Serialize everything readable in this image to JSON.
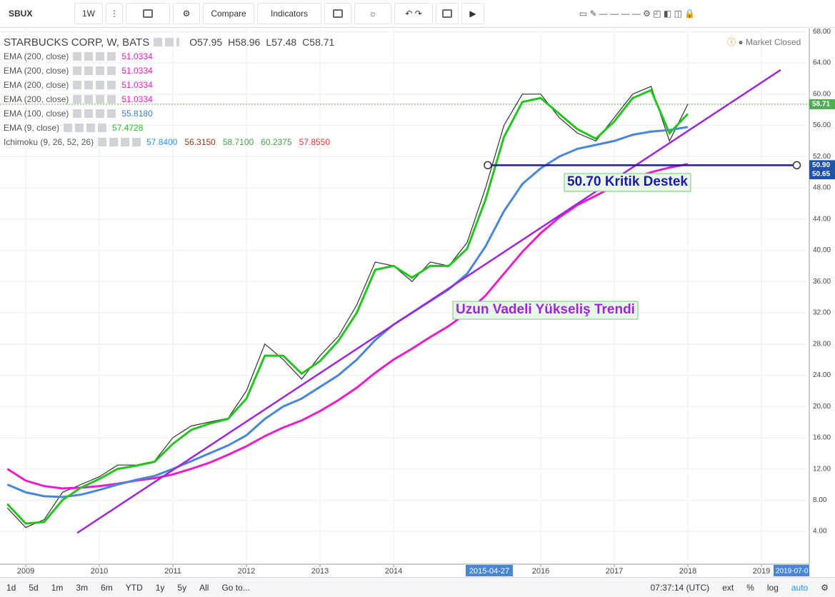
{
  "toolbar": {
    "symbol": "SBUX",
    "interval": "1W",
    "compare": "Compare",
    "indicators": "Indicators"
  },
  "legend": {
    "title": "STARBUCKS CORP, W, BATS",
    "ohlc": [
      {
        "label": "O",
        "value": 57.95
      },
      {
        "label": "H",
        "value": 58.96
      },
      {
        "label": "L",
        "value": 57.48
      },
      {
        "label": "C",
        "value": 58.71
      }
    ],
    "indicators": [
      {
        "name": "EMA (200, close)",
        "values": [
          51.0334
        ],
        "colors": [
          "#e91ec9"
        ]
      },
      {
        "name": "EMA (200, close)",
        "values": [
          51.0334
        ],
        "colors": [
          "#e91ec9"
        ]
      },
      {
        "name": "EMA (200, close)",
        "values": [
          51.0334
        ],
        "colors": [
          "#e91ec9"
        ]
      },
      {
        "name": "EMA (200, close)",
        "values": [
          51.0334
        ],
        "colors": [
          "#e91ec9"
        ]
      },
      {
        "name": "EMA (100, close)",
        "values": [
          55.818
        ],
        "value_labels": [
          "55.8180"
        ],
        "colors": [
          "#3d7bd9"
        ]
      },
      {
        "name": "EMA (9, close)",
        "values": [
          57.4728
        ],
        "colors": [
          "#23c41e"
        ]
      },
      {
        "name": "Ichimoku (9, 26, 52, 26)",
        "values": [
          57.84,
          56.315,
          58.71,
          60.2375,
          57.855
        ],
        "value_labels": [
          "57.8400",
          "56.3150",
          "58.7100",
          "60.2375",
          "57.8550"
        ],
        "colors": [
          "#2196f3",
          "#8d3a1a",
          "#43a047",
          "#43a047",
          "#e53935"
        ]
      }
    ],
    "status": "Market Closed"
  },
  "chart_data": {
    "type": "line",
    "x": [
      2008.75,
      2009,
      2009.25,
      2009.5,
      2009.75,
      2010,
      2010.25,
      2010.5,
      2010.75,
      2011,
      2011.25,
      2011.5,
      2011.75,
      2012,
      2012.25,
      2012.5,
      2012.75,
      2013,
      2013.25,
      2013.5,
      2013.75,
      2014,
      2014.25,
      2014.5,
      2014.75,
      2015,
      2015.25,
      2015.5,
      2015.75,
      2016,
      2016.25,
      2016.5,
      2016.75,
      2017,
      2017.25,
      2017.5,
      2017.75,
      2018
    ],
    "series": [
      {
        "color": "#333333",
        "values": [
          7,
          4.5,
          5.5,
          9,
          10,
          11,
          12.5,
          12.5,
          13,
          16,
          17.5,
          18,
          18.5,
          22,
          28,
          26,
          23.5,
          26.5,
          29,
          33,
          38.5,
          38,
          36,
          38.5,
          38,
          41,
          48,
          56,
          60,
          60,
          57,
          55,
          54,
          57,
          60,
          61,
          54,
          58.71
        ]
      },
      {
        "name": "EMA (200, close)",
        "color": "#e91ec9",
        "values": [
          12,
          10.5,
          9.8,
          9.5,
          9.6,
          9.8,
          10.1,
          10.5,
          10.8,
          11.3,
          12,
          12.8,
          13.8,
          14.9,
          16.2,
          17.3,
          18.2,
          19.4,
          20.8,
          22.4,
          24.3,
          26,
          27.4,
          28.9,
          30.3,
          32,
          34.2,
          37,
          39.8,
          42.2,
          44.2,
          45.8,
          47,
          48.2,
          49.2,
          50,
          50.6,
          51.03
        ]
      },
      {
        "name": "EMA (100, close)",
        "color": "#4a86d8",
        "values": [
          10,
          9,
          8.5,
          8.4,
          8.7,
          9.3,
          10,
          10.6,
          11.1,
          12,
          13,
          14,
          15,
          16.3,
          18.4,
          20,
          21,
          22.5,
          24,
          26,
          28.5,
          30.5,
          32,
          33.5,
          35,
          37,
          40.5,
          45,
          48.5,
          50.5,
          52,
          53,
          53.5,
          54,
          54.8,
          55.2,
          55.4,
          55.8
        ]
      },
      {
        "name": "EMA (9, close)",
        "color": "#23c41e",
        "values": [
          7.5,
          5,
          5.2,
          8,
          9.6,
          10.7,
          12,
          12.4,
          12.9,
          15.2,
          17,
          17.8,
          18.4,
          21,
          26.5,
          26.5,
          24.2,
          25.8,
          28.4,
          32,
          37.5,
          38,
          36.5,
          38,
          38,
          40.2,
          46.5,
          54.5,
          59,
          59.5,
          57.5,
          55.5,
          54.3,
          56.5,
          59.5,
          60.5,
          55,
          57.47
        ]
      }
    ],
    "xlim": [
      2008.65,
      2019.65
    ],
    "ylim": [
      -0.2,
      68.4
    ],
    "xticks": [
      {
        "value": 2009,
        "label": "2009"
      },
      {
        "value": 2010,
        "label": "2010"
      },
      {
        "value": 2011,
        "label": "2011"
      },
      {
        "value": 2012,
        "label": "2012"
      },
      {
        "value": 2013,
        "label": "2013"
      },
      {
        "value": 2014,
        "label": "2014"
      },
      {
        "value": 2016,
        "label": "2016"
      },
      {
        "value": 2017,
        "label": "2017"
      },
      {
        "value": 2018,
        "label": "2018"
      },
      {
        "value": 2019,
        "label": "2019"
      }
    ],
    "yticks": [
      {
        "value": 4,
        "label": "4.00"
      },
      {
        "value": 8,
        "label": "8.00"
      },
      {
        "value": 12,
        "label": "12.00"
      },
      {
        "value": 16,
        "label": "16.00"
      },
      {
        "value": 20,
        "label": "20.00"
      },
      {
        "value": 24,
        "label": "24.00"
      },
      {
        "value": 28,
        "label": "28.00"
      },
      {
        "value": 32,
        "label": "32.00"
      },
      {
        "value": 36,
        "label": "36.00"
      },
      {
        "value": 40,
        "label": "40.00"
      },
      {
        "value": 44,
        "label": "44.00"
      },
      {
        "value": 48,
        "label": "48.00"
      },
      {
        "value": 52,
        "label": "52.00"
      },
      {
        "value": 56,
        "label": "56.00"
      },
      {
        "value": 60,
        "label": "60.00"
      },
      {
        "value": 64,
        "label": "64.00"
      },
      {
        "value": 68,
        "label": "68.00"
      }
    ],
    "grid": true,
    "price_labels": [
      {
        "value": 58.71,
        "label": "58.71",
        "color": "#4caf50"
      },
      {
        "value": 50.9,
        "label": "50.90",
        "color": "#1e53a8"
      },
      {
        "value": 50.65,
        "label": "50.65",
        "color": "#1e53a8"
      }
    ],
    "trend_lines": [
      {
        "x": [
          2009.7,
          2019.26
        ],
        "y": [
          3.8,
          63.1
        ],
        "color": "#9c27d9"
      },
      {
        "x": [
          2015.28,
          2019.48
        ],
        "y": [
          50.9,
          50.9
        ],
        "color": "#1a1aa6"
      }
    ],
    "annotations": [
      {
        "text": "50.70 Kritik Destek",
        "color": "#1a1aa6"
      },
      {
        "text": "Uzun Vadeli Yükseliş Trendi",
        "color": "#9c27d9"
      }
    ],
    "crosshair_label": "2015-04-27",
    "range_end_label": "2019-07-0"
  },
  "bottom_bar": {
    "ranges": [
      "1d",
      "5d",
      "1m",
      "3m",
      "6m",
      "YTD",
      "1y",
      "5y",
      "All"
    ],
    "goto": "Go to...",
    "time": "07:37:14 (UTC)",
    "options": [
      "ext",
      "%",
      "log",
      "auto"
    ]
  }
}
